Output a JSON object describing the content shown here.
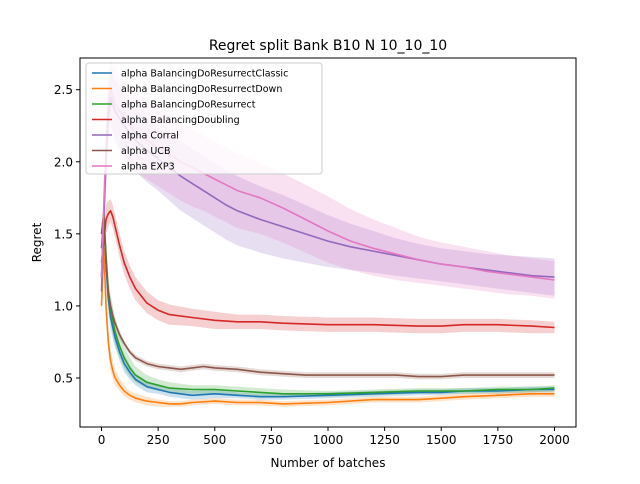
{
  "chart_data": {
    "type": "line",
    "title": "Regret split Bank B10 N 10_10_10",
    "xlabel": "Number of batches",
    "ylabel": "Regret",
    "xlim": [
      -95,
      2095
    ],
    "ylim": [
      0.16,
      2.72
    ],
    "x_ticks": [
      0,
      250,
      500,
      750,
      1000,
      1250,
      1500,
      1750,
      2000
    ],
    "y_ticks": [
      0.5,
      1.0,
      1.5,
      2.0,
      2.5
    ],
    "x_tick_labels": [
      "0",
      "250",
      "500",
      "750",
      "1000",
      "1250",
      "1500",
      "1750",
      "2000"
    ],
    "y_tick_labels": [
      "0.5",
      "1.0",
      "1.5",
      "2.0",
      "2.5"
    ],
    "grid": false,
    "legend_position": "top-left",
    "series": [
      {
        "name": "alpha BalancingDoResurrectClassic",
        "color": "#1f77b4",
        "x": [
          0,
          10,
          20,
          30,
          40,
          50,
          60,
          80,
          100,
          125,
          150,
          200,
          250,
          300,
          400,
          500,
          600,
          700,
          800,
          1000,
          1200,
          1400,
          1500,
          1600,
          1750,
          1900,
          2000
        ],
        "y": [
          1.2,
          1.6,
          1.3,
          1.05,
          0.92,
          0.85,
          0.78,
          0.68,
          0.6,
          0.54,
          0.49,
          0.44,
          0.42,
          0.4,
          0.38,
          0.39,
          0.38,
          0.37,
          0.37,
          0.38,
          0.39,
          0.4,
          0.4,
          0.41,
          0.41,
          0.42,
          0.42
        ],
        "upper": [
          1.3,
          1.7,
          1.45,
          1.15,
          1.0,
          0.93,
          0.85,
          0.74,
          0.66,
          0.59,
          0.53,
          0.48,
          0.45,
          0.43,
          0.41,
          0.42,
          0.4,
          0.39,
          0.39,
          0.4,
          0.41,
          0.42,
          0.42,
          0.43,
          0.43,
          0.44,
          0.44
        ],
        "lower": [
          1.1,
          1.5,
          1.15,
          0.95,
          0.84,
          0.77,
          0.71,
          0.62,
          0.54,
          0.49,
          0.45,
          0.4,
          0.39,
          0.37,
          0.35,
          0.36,
          0.36,
          0.35,
          0.35,
          0.36,
          0.37,
          0.38,
          0.38,
          0.39,
          0.39,
          0.4,
          0.4
        ]
      },
      {
        "name": "alpha BalancingDoResurrectDown",
        "color": "#ff7f0e",
        "x": [
          0,
          10,
          20,
          30,
          40,
          50,
          60,
          80,
          100,
          125,
          150,
          200,
          250,
          300,
          350,
          400,
          500,
          600,
          700,
          800,
          1000,
          1200,
          1400,
          1500,
          1600,
          1750,
          1900,
          2000
        ],
        "y": [
          1.0,
          1.4,
          1.0,
          0.75,
          0.62,
          0.55,
          0.5,
          0.45,
          0.41,
          0.38,
          0.36,
          0.34,
          0.33,
          0.32,
          0.32,
          0.33,
          0.34,
          0.33,
          0.33,
          0.32,
          0.33,
          0.35,
          0.35,
          0.36,
          0.37,
          0.38,
          0.39,
          0.39
        ],
        "upper": [
          1.1,
          1.5,
          1.15,
          0.85,
          0.7,
          0.62,
          0.56,
          0.5,
          0.45,
          0.41,
          0.39,
          0.37,
          0.35,
          0.34,
          0.34,
          0.35,
          0.36,
          0.35,
          0.35,
          0.34,
          0.35,
          0.37,
          0.37,
          0.38,
          0.39,
          0.4,
          0.41,
          0.41
        ],
        "lower": [
          0.9,
          1.3,
          0.88,
          0.66,
          0.55,
          0.49,
          0.45,
          0.41,
          0.37,
          0.35,
          0.33,
          0.31,
          0.3,
          0.3,
          0.3,
          0.31,
          0.32,
          0.31,
          0.31,
          0.3,
          0.31,
          0.33,
          0.33,
          0.34,
          0.35,
          0.36,
          0.37,
          0.37
        ]
      },
      {
        "name": "alpha BalancingDoResurrect",
        "color": "#2ca02c",
        "x": [
          0,
          10,
          20,
          30,
          40,
          50,
          60,
          80,
          100,
          125,
          150,
          200,
          250,
          300,
          400,
          500,
          600,
          700,
          800,
          1000,
          1200,
          1400,
          1500,
          1600,
          1750,
          1900,
          2000
        ],
        "y": [
          1.4,
          1.62,
          1.35,
          1.1,
          0.98,
          0.9,
          0.82,
          0.72,
          0.64,
          0.57,
          0.52,
          0.47,
          0.45,
          0.43,
          0.42,
          0.42,
          0.41,
          0.4,
          0.39,
          0.39,
          0.4,
          0.41,
          0.41,
          0.41,
          0.42,
          0.42,
          0.43
        ],
        "upper": [
          1.5,
          1.72,
          1.5,
          1.2,
          1.08,
          1.0,
          0.92,
          0.8,
          0.72,
          0.64,
          0.58,
          0.52,
          0.49,
          0.47,
          0.45,
          0.45,
          0.44,
          0.43,
          0.42,
          0.41,
          0.42,
          0.43,
          0.43,
          0.43,
          0.44,
          0.44,
          0.45
        ],
        "lower": [
          1.3,
          1.52,
          1.2,
          1.0,
          0.88,
          0.8,
          0.73,
          0.64,
          0.57,
          0.51,
          0.47,
          0.43,
          0.41,
          0.4,
          0.39,
          0.39,
          0.38,
          0.37,
          0.37,
          0.37,
          0.38,
          0.39,
          0.39,
          0.39,
          0.4,
          0.4,
          0.41
        ]
      },
      {
        "name": "alpha BalancingDoubling",
        "color": "#d62728",
        "x": [
          0,
          10,
          20,
          30,
          40,
          50,
          60,
          80,
          100,
          125,
          150,
          200,
          250,
          300,
          400,
          500,
          600,
          700,
          800,
          1000,
          1200,
          1400,
          1500,
          1600,
          1750,
          1900,
          2000
        ],
        "y": [
          1.3,
          1.45,
          1.6,
          1.64,
          1.66,
          1.62,
          1.55,
          1.42,
          1.3,
          1.2,
          1.12,
          1.02,
          0.97,
          0.94,
          0.92,
          0.9,
          0.89,
          0.89,
          0.88,
          0.87,
          0.87,
          0.86,
          0.86,
          0.87,
          0.87,
          0.86,
          0.85
        ],
        "upper": [
          1.4,
          1.55,
          1.7,
          1.73,
          1.74,
          1.7,
          1.63,
          1.5,
          1.38,
          1.28,
          1.2,
          1.1,
          1.04,
          1.01,
          0.98,
          0.96,
          0.94,
          0.94,
          0.93,
          0.92,
          0.92,
          0.91,
          0.91,
          0.91,
          0.91,
          0.9,
          0.89
        ],
        "lower": [
          1.2,
          1.35,
          1.5,
          1.55,
          1.58,
          1.54,
          1.47,
          1.34,
          1.22,
          1.12,
          1.04,
          0.95,
          0.9,
          0.87,
          0.86,
          0.84,
          0.84,
          0.84,
          0.83,
          0.82,
          0.82,
          0.81,
          0.81,
          0.82,
          0.82,
          0.81,
          0.81
        ]
      },
      {
        "name": "alpha Corral",
        "color": "#9467bd",
        "x": [
          0,
          10,
          20,
          30,
          40,
          50,
          60,
          80,
          100,
          125,
          150,
          200,
          250,
          300,
          350,
          400,
          450,
          500,
          550,
          600,
          700,
          800,
          900,
          1000,
          1100,
          1200,
          1300,
          1400,
          1500,
          1600,
          1700,
          1800,
          1900,
          2000
        ],
        "y": [
          1.1,
          1.6,
          2.0,
          2.3,
          2.45,
          2.4,
          2.35,
          2.3,
          2.25,
          2.2,
          2.15,
          2.08,
          2.02,
          1.96,
          1.9,
          1.85,
          1.8,
          1.75,
          1.7,
          1.66,
          1.6,
          1.55,
          1.5,
          1.45,
          1.41,
          1.38,
          1.35,
          1.32,
          1.29,
          1.27,
          1.25,
          1.23,
          1.21,
          1.2
        ],
        "upper": [
          1.2,
          1.75,
          2.2,
          2.5,
          2.65,
          2.62,
          2.57,
          2.52,
          2.47,
          2.42,
          2.37,
          2.3,
          2.24,
          2.19,
          2.14,
          2.09,
          2.04,
          1.99,
          1.94,
          1.9,
          1.83,
          1.77,
          1.7,
          1.63,
          1.57,
          1.52,
          1.47,
          1.43,
          1.4,
          1.38,
          1.36,
          1.35,
          1.34,
          1.33
        ],
        "lower": [
          1.0,
          1.45,
          1.8,
          2.1,
          2.25,
          2.18,
          2.13,
          2.08,
          2.03,
          1.98,
          1.93,
          1.86,
          1.8,
          1.73,
          1.66,
          1.61,
          1.56,
          1.51,
          1.46,
          1.42,
          1.37,
          1.33,
          1.3,
          1.27,
          1.25,
          1.23,
          1.21,
          1.19,
          1.17,
          1.15,
          1.13,
          1.11,
          1.09,
          1.07
        ]
      },
      {
        "name": "alpha UCB",
        "color": "#8c564b",
        "x": [
          0,
          10,
          20,
          30,
          40,
          50,
          60,
          80,
          100,
          125,
          150,
          200,
          250,
          300,
          350,
          400,
          450,
          500,
          600,
          700,
          800,
          900,
          1000,
          1100,
          1200,
          1300,
          1400,
          1500,
          1600,
          1750,
          1900,
          2000
        ],
        "y": [
          1.5,
          1.65,
          1.3,
          1.1,
          1.0,
          0.93,
          0.88,
          0.8,
          0.74,
          0.68,
          0.64,
          0.6,
          0.58,
          0.57,
          0.56,
          0.57,
          0.58,
          0.57,
          0.56,
          0.54,
          0.53,
          0.52,
          0.52,
          0.52,
          0.52,
          0.52,
          0.51,
          0.51,
          0.52,
          0.52,
          0.52,
          0.52
        ],
        "upper": [
          1.55,
          1.7,
          1.36,
          1.15,
          1.04,
          0.97,
          0.91,
          0.83,
          0.76,
          0.7,
          0.66,
          0.62,
          0.6,
          0.59,
          0.58,
          0.59,
          0.6,
          0.59,
          0.58,
          0.56,
          0.55,
          0.54,
          0.54,
          0.54,
          0.54,
          0.54,
          0.53,
          0.53,
          0.54,
          0.54,
          0.54,
          0.54
        ],
        "lower": [
          1.45,
          1.6,
          1.24,
          1.05,
          0.96,
          0.89,
          0.85,
          0.77,
          0.72,
          0.66,
          0.62,
          0.58,
          0.56,
          0.55,
          0.54,
          0.55,
          0.56,
          0.55,
          0.54,
          0.52,
          0.51,
          0.5,
          0.5,
          0.5,
          0.5,
          0.5,
          0.49,
          0.49,
          0.5,
          0.5,
          0.5,
          0.5
        ]
      },
      {
        "name": "alpha EXP3",
        "color": "#e377c2",
        "x": [
          0,
          10,
          20,
          30,
          40,
          50,
          60,
          80,
          100,
          125,
          150,
          200,
          250,
          300,
          350,
          400,
          450,
          500,
          550,
          600,
          700,
          800,
          900,
          1000,
          1100,
          1200,
          1300,
          1400,
          1500,
          1600,
          1700,
          1800,
          1900,
          2000
        ],
        "y": [
          1.2,
          1.7,
          2.1,
          2.4,
          2.5,
          2.45,
          2.4,
          2.35,
          2.3,
          2.25,
          2.2,
          2.15,
          2.1,
          2.05,
          2.0,
          1.96,
          1.92,
          1.88,
          1.84,
          1.8,
          1.75,
          1.68,
          1.6,
          1.52,
          1.45,
          1.4,
          1.36,
          1.32,
          1.29,
          1.27,
          1.24,
          1.22,
          1.2,
          1.18
        ],
        "upper": [
          1.3,
          1.9,
          2.3,
          2.6,
          2.7,
          2.68,
          2.64,
          2.6,
          2.56,
          2.52,
          2.48,
          2.42,
          2.37,
          2.32,
          2.28,
          2.23,
          2.18,
          2.14,
          2.1,
          2.06,
          1.99,
          1.92,
          1.84,
          1.76,
          1.67,
          1.6,
          1.54,
          1.48,
          1.44,
          1.41,
          1.38,
          1.35,
          1.33,
          1.31
        ],
        "lower": [
          1.1,
          1.5,
          1.9,
          2.2,
          2.3,
          2.22,
          2.16,
          2.1,
          2.04,
          1.98,
          1.93,
          1.88,
          1.83,
          1.78,
          1.73,
          1.69,
          1.66,
          1.62,
          1.58,
          1.54,
          1.5,
          1.44,
          1.37,
          1.3,
          1.25,
          1.21,
          1.18,
          1.16,
          1.14,
          1.12,
          1.1,
          1.08,
          1.07,
          1.05
        ]
      }
    ]
  }
}
